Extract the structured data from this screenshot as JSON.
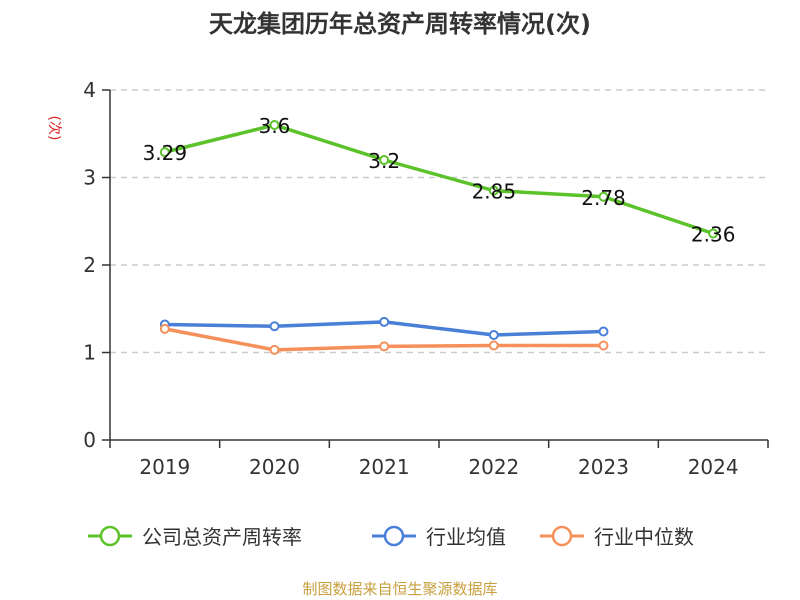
{
  "chart_data": {
    "type": "line",
    "title": "天龙集团历年总资产周转率情况(次)",
    "ylabel": "(次)",
    "xlabel": "",
    "categories": [
      "2019",
      "2020",
      "2021",
      "2022",
      "2023",
      "2024"
    ],
    "ylim": [
      0,
      4
    ],
    "yticks": [
      0,
      1,
      2,
      3,
      4
    ],
    "grid": true,
    "legend_position": "bottom",
    "series": [
      {
        "name": "公司总资产周转率",
        "color": "#5cc22a",
        "values": [
          3.29,
          3.6,
          3.2,
          2.85,
          2.78,
          2.36
        ],
        "labels": [
          "3.29",
          "3.6",
          "3.2",
          "2.85",
          "2.78",
          "2.36"
        ],
        "show_labels": true
      },
      {
        "name": "行业均值",
        "color": "#4a7fd8",
        "values": [
          1.32,
          1.3,
          1.35,
          1.2,
          1.24,
          null
        ],
        "show_labels": false
      },
      {
        "name": "行业中位数",
        "color": "#f5905a",
        "values": [
          1.27,
          1.03,
          1.07,
          1.08,
          1.08,
          null
        ],
        "show_labels": false
      }
    ],
    "source": "制图数据来自恒生聚源数据库"
  }
}
